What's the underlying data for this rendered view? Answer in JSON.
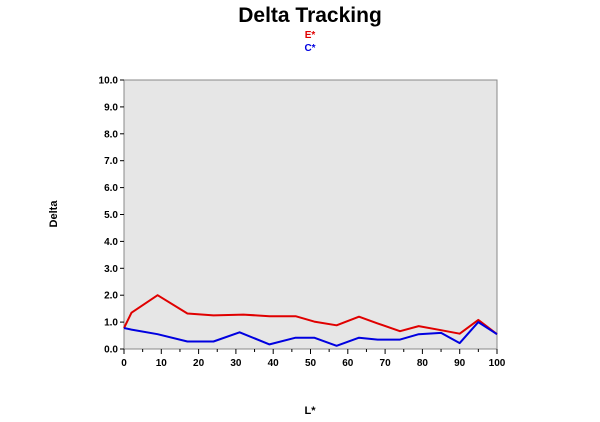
{
  "chart_data": {
    "type": "line",
    "title": "Delta Tracking",
    "xlabel": "L*",
    "ylabel": "Delta",
    "xlim": [
      0,
      100
    ],
    "ylim": [
      0,
      10
    ],
    "x_ticks": [
      "0",
      "10",
      "20",
      "30",
      "40",
      "50",
      "60",
      "70",
      "80",
      "90",
      "100"
    ],
    "y_ticks": [
      "0.0",
      "1.0",
      "2.0",
      "3.0",
      "4.0",
      "5.0",
      "6.0",
      "7.0",
      "8.0",
      "9.0",
      "10.0"
    ],
    "grid": false,
    "legend_position": "top-center",
    "background": "#e6e6e6",
    "series": [
      {
        "name": "E*",
        "color": "#e00000",
        "x": [
          0,
          2,
          9,
          17,
          24,
          32,
          39,
          46,
          51,
          57,
          63,
          68,
          74,
          79,
          85,
          90,
          95,
          100
        ],
        "y": [
          0.78,
          1.35,
          2.0,
          1.32,
          1.25,
          1.28,
          1.22,
          1.22,
          1.02,
          0.88,
          1.2,
          0.95,
          0.66,
          0.85,
          0.7,
          0.57,
          1.08,
          0.55
        ]
      },
      {
        "name": "C*",
        "color": "#0000e0",
        "x": [
          0,
          2,
          9,
          17,
          24,
          31,
          39,
          46,
          51,
          57,
          63,
          68,
          74,
          79,
          85,
          90,
          95,
          100
        ],
        "y": [
          0.78,
          0.72,
          0.55,
          0.28,
          0.28,
          0.62,
          0.17,
          0.42,
          0.42,
          0.12,
          0.42,
          0.35,
          0.35,
          0.55,
          0.6,
          0.22,
          1.0,
          0.55
        ]
      }
    ]
  }
}
